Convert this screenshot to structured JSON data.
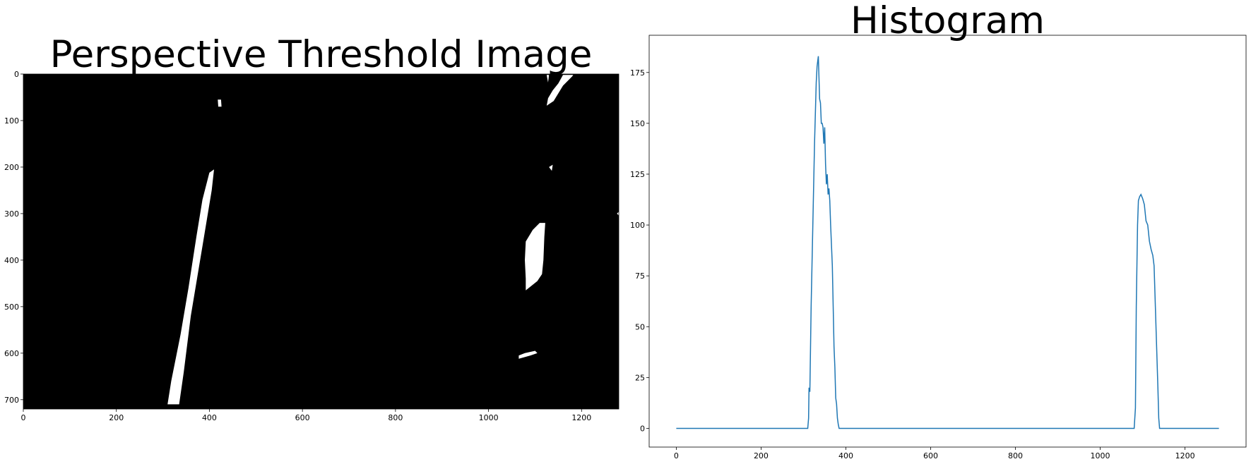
{
  "chart_data": [
    {
      "type": "image",
      "title": "Perspective Threshold Image",
      "xlim": [
        0,
        1280
      ],
      "ylim": [
        720,
        0
      ],
      "x_ticks": [
        0,
        200,
        400,
        600,
        800,
        1000,
        1200
      ],
      "y_ticks": [
        0,
        100,
        200,
        300,
        400,
        500,
        600,
        700
      ],
      "x_tick_labels": [
        "0",
        "200",
        "400",
        "600",
        "800",
        "1000",
        "1200"
      ],
      "y_tick_labels": [
        "0",
        "100",
        "200",
        "300",
        "400",
        "500",
        "600",
        "700"
      ],
      "background_color": "#000000",
      "foreground_color": "#ffffff",
      "white_regions": [
        {
          "name": "left-lane-line",
          "points": [
            [
              310,
              710
            ],
            [
              335,
              710
            ],
            [
              345,
              640
            ],
            [
              360,
              520
            ],
            [
              385,
              370
            ],
            [
              405,
              250
            ],
            [
              410,
              205
            ],
            [
              400,
              212
            ],
            [
              385,
              270
            ],
            [
              372,
              350
            ],
            [
              355,
              460
            ],
            [
              338,
              560
            ],
            [
              318,
              660
            ]
          ]
        },
        {
          "name": "left-lane-fragment-top",
          "points": [
            [
              418,
              55
            ],
            [
              425,
              55
            ],
            [
              426,
              70
            ],
            [
              419,
              70
            ]
          ]
        },
        {
          "name": "right-lane-segment-top",
          "points": [
            [
              1125,
              68
            ],
            [
              1140,
              58
            ],
            [
              1160,
              25
            ],
            [
              1180,
              5
            ],
            [
              1182,
              2
            ],
            [
              1160,
              2
            ],
            [
              1150,
              20
            ],
            [
              1138,
              35
            ],
            [
              1128,
              52
            ]
          ]
        },
        {
          "name": "right-lane-segment-top-stub",
          "points": [
            [
              1125,
              2
            ],
            [
              1130,
              2
            ],
            [
              1128,
              18
            ]
          ]
        },
        {
          "name": "right-lane-fleck",
          "points": [
            [
              1130,
              200
            ],
            [
              1138,
              195
            ],
            [
              1136,
              208
            ]
          ]
        },
        {
          "name": "right-lane-segment-middle",
          "points": [
            [
              1080,
              465
            ],
            [
              1105,
              445
            ],
            [
              1115,
              430
            ],
            [
              1118,
              400
            ],
            [
              1120,
              350
            ],
            [
              1122,
              320
            ],
            [
              1110,
              320
            ],
            [
              1095,
              335
            ],
            [
              1080,
              360
            ],
            [
              1078,
              400
            ],
            [
              1080,
              440
            ]
          ]
        },
        {
          "name": "right-lane-segment-bottom",
          "points": [
            [
              1065,
              612
            ],
            [
              1090,
              605
            ],
            [
              1105,
              600
            ],
            [
              1100,
              595
            ],
            [
              1078,
              600
            ],
            [
              1065,
              605
            ]
          ]
        },
        {
          "name": "right-edge-fleck",
          "points": [
            [
              1276,
              300
            ],
            [
              1280,
              296
            ],
            [
              1280,
              304
            ]
          ]
        }
      ]
    },
    {
      "type": "line",
      "title": "Histogram",
      "xlabel": "",
      "ylabel": "",
      "xlim": [
        -64,
        1344
      ],
      "ylim": [
        -9.2,
        193.3
      ],
      "x_ticks": [
        0,
        200,
        400,
        600,
        800,
        1000,
        1200
      ],
      "y_ticks": [
        0,
        25,
        50,
        75,
        100,
        125,
        150,
        175
      ],
      "x_tick_labels": [
        "0",
        "200",
        "400",
        "600",
        "800",
        "1000",
        "1200"
      ],
      "y_tick_labels": [
        "0",
        "25",
        "50",
        "75",
        "100",
        "125",
        "150",
        "175"
      ],
      "line_color": "#1f77b4",
      "grid": false,
      "series": [
        {
          "name": "histogram",
          "x": [
            0,
            310,
            312,
            313,
            315,
            318,
            320,
            323,
            326,
            330,
            332,
            335,
            338,
            340,
            342,
            344,
            346,
            348,
            350,
            352,
            354,
            356,
            358,
            360,
            362,
            364,
            366,
            368,
            370,
            372,
            374,
            376,
            378,
            380,
            382,
            384,
            386,
            1080,
            1083,
            1085,
            1088,
            1090,
            1093,
            1096,
            1100,
            1104,
            1108,
            1112,
            1116,
            1120,
            1124,
            1127,
            1130,
            1133,
            1136,
            1138,
            1140,
            1280
          ],
          "values": [
            0,
            0,
            5,
            20,
            18,
            60,
            80,
            110,
            140,
            170,
            178,
            183,
            162,
            160,
            150,
            150,
            148,
            140,
            148,
            130,
            120,
            125,
            115,
            118,
            112,
            100,
            90,
            80,
            60,
            40,
            30,
            15,
            12,
            5,
            2,
            0,
            0,
            0,
            10,
            60,
            100,
            112,
            114,
            115,
            113,
            110,
            102,
            100,
            92,
            88,
            85,
            80,
            60,
            40,
            20,
            5,
            0,
            0
          ]
        }
      ]
    }
  ]
}
